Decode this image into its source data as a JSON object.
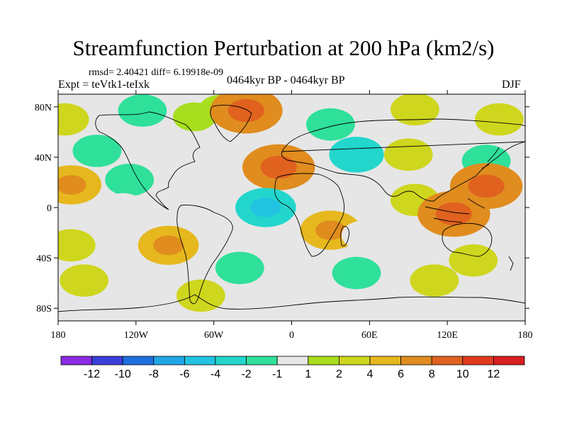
{
  "chart_data": {
    "type": "heatmap",
    "title": "Streamfunction Perturbation at 200 hPa (km2/s)",
    "stats": "rmsd= 2.40421 diff= 6.19918e-09",
    "expt": "Expt = teVtk1-teIxk",
    "period": "0464kyr BP - 0464kyr BP",
    "season": "DJF",
    "xlim": [
      -180,
      180
    ],
    "ylim": [
      -90,
      90
    ],
    "x_ticks": [
      {
        "value": -180,
        "label": "180"
      },
      {
        "value": -120,
        "label": "120W"
      },
      {
        "value": -60,
        "label": "60W"
      },
      {
        "value": 0,
        "label": "0"
      },
      {
        "value": 60,
        "label": "60E"
      },
      {
        "value": 120,
        "label": "120E"
      },
      {
        "value": 180,
        "label": "180"
      }
    ],
    "y_ticks": [
      {
        "value": 80,
        "label": "80N"
      },
      {
        "value": 40,
        "label": "40N"
      },
      {
        "value": 0,
        "label": "0"
      },
      {
        "value": -40,
        "label": "40S"
      },
      {
        "value": -80,
        "label": "80S"
      }
    ],
    "colorbar": {
      "levels": [
        "-12",
        "-10",
        "-8",
        "-6",
        "-4",
        "-2",
        "-1",
        "1",
        "2",
        "4",
        "6",
        "8",
        "10",
        "12"
      ],
      "colors": [
        "#8a2be2",
        "#3a3fd8",
        "#1f6fe0",
        "#1fa5e6",
        "#22c3e0",
        "#22d6cc",
        "#2fe09a",
        "#e6e6e6",
        "#a8de1e",
        "#cfd61e",
        "#e6b81e",
        "#e08c1e",
        "#e0621e",
        "#e03a1e",
        "#d81e1e"
      ]
    },
    "field_anomalies": [
      {
        "lon": -115,
        "lat": 77,
        "value": -2
      },
      {
        "lon": -75,
        "lat": 72,
        "value": 1
      },
      {
        "lon": -55,
        "lat": 78,
        "value": 1
      },
      {
        "lon": -35,
        "lat": 77,
        "value": 6
      },
      {
        "lon": 30,
        "lat": 66,
        "value": -2
      },
      {
        "lon": 95,
        "lat": 78,
        "value": 2
      },
      {
        "lon": 125,
        "lat": 55,
        "value": -1
      },
      {
        "lon": 160,
        "lat": 70,
        "value": 2
      },
      {
        "lon": -175,
        "lat": 70,
        "value": 2
      },
      {
        "lon": -150,
        "lat": 45,
        "value": -2
      },
      {
        "lon": -125,
        "lat": 22,
        "value": -2
      },
      {
        "lon": -10,
        "lat": 32,
        "value": 6
      },
      {
        "lon": 50,
        "lat": 42,
        "value": -3
      },
      {
        "lon": 90,
        "lat": 42,
        "value": 2
      },
      {
        "lon": 150,
        "lat": 37,
        "value": -2
      },
      {
        "lon": -170,
        "lat": 18,
        "value": 4
      },
      {
        "lon": 150,
        "lat": 17,
        "value": 6
      },
      {
        "lon": 95,
        "lat": 6,
        "value": 2
      },
      {
        "lon": -130,
        "lat": 0,
        "value": -1
      },
      {
        "lon": -20,
        "lat": 0,
        "value": -4
      },
      {
        "lon": 30,
        "lat": 10,
        "value": -1
      },
      {
        "lon": 30,
        "lat": -18,
        "value": 4
      },
      {
        "lon": 55,
        "lat": -22,
        "value": -1
      },
      {
        "lon": 125,
        "lat": -5,
        "value": 6
      },
      {
        "lon": -170,
        "lat": -30,
        "value": 2
      },
      {
        "lon": -95,
        "lat": -30,
        "value": 4
      },
      {
        "lon": 95,
        "lat": -32,
        "value": -1
      },
      {
        "lon": 165,
        "lat": -25,
        "value": -1
      },
      {
        "lon": 140,
        "lat": -42,
        "value": 2
      },
      {
        "lon": -40,
        "lat": -48,
        "value": -2
      },
      {
        "lon": 50,
        "lat": -52,
        "value": -2
      },
      {
        "lon": 110,
        "lat": -58,
        "value": 2
      },
      {
        "lon": -160,
        "lat": -58,
        "value": 2
      },
      {
        "lon": -70,
        "lat": -70,
        "value": 2
      },
      {
        "lon": 170,
        "lat": -70,
        "value": -1
      }
    ]
  }
}
